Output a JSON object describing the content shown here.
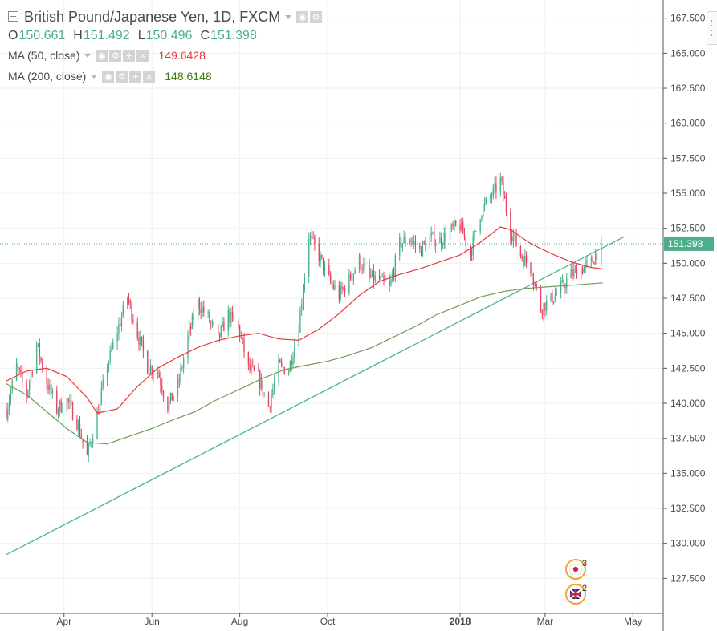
{
  "header": {
    "symbol_title": "British Pound/Japanese Yen, 1D, FXCM",
    "ohlc": [
      {
        "key": "O",
        "value": "150.661"
      },
      {
        "key": "H",
        "value": "151.492"
      },
      {
        "key": "L",
        "value": "150.496"
      },
      {
        "key": "C",
        "value": "151.398"
      }
    ]
  },
  "indicators": [
    {
      "label": "MA (50, close)",
      "value": "149.6428",
      "color": "#e23b3b"
    },
    {
      "label": "MA (200, close)",
      "value": "148.6148",
      "color": "#3d7a12"
    }
  ],
  "colors": {
    "up": "#4caf8a",
    "down": "#e2435e",
    "ma50": "#e23b3b",
    "ma200": "#6d9a55",
    "trendline": "#49b394",
    "grid": "#eef0f2",
    "last_price_bg": "#4caf8a"
  },
  "events": [
    {
      "icon": "jp-flag-icon",
      "count": "3"
    },
    {
      "icon": "gb-flag-icon",
      "count": "2"
    }
  ],
  "chart_data": {
    "type": "candlestick",
    "title": "British Pound/Japanese Yen, 1D, FXCM",
    "y_ticks": [
      "167.500",
      "165.000",
      "162.500",
      "160.000",
      "157.500",
      "155.000",
      "152.500",
      "150.000",
      "147.500",
      "145.000",
      "142.500",
      "140.000",
      "137.500",
      "135.000",
      "132.500",
      "130.000",
      "127.500"
    ],
    "x_ticks": [
      {
        "label": "Apr",
        "date": "2017-04-01",
        "bold": false
      },
      {
        "label": "Jun",
        "date": "2017-06-01",
        "bold": false
      },
      {
        "label": "Aug",
        "date": "2017-08-01",
        "bold": false
      },
      {
        "label": "Oct",
        "date": "2017-10-01",
        "bold": false
      },
      {
        "label": "2018",
        "date": "2018-01-01",
        "bold": true
      },
      {
        "label": "Mar",
        "date": "2018-03-01",
        "bold": false
      },
      {
        "label": "May",
        "date": "2018-05-01",
        "bold": false
      }
    ],
    "ylim": [
      125.0,
      168.8
    ],
    "xlim": [
      "2017-02-20",
      "2018-05-22"
    ],
    "last_price": "151.398",
    "last_price_value": 151.398,
    "grid": true,
    "close_path": [
      [
        "2017-02-20",
        139.5
      ],
      [
        "2017-02-27",
        142.6
      ],
      [
        "2017-03-06",
        140.6
      ],
      [
        "2017-03-13",
        144.2
      ],
      [
        "2017-03-20",
        141.5
      ],
      [
        "2017-03-27",
        139.6
      ],
      [
        "2017-04-03",
        140.2
      ],
      [
        "2017-04-10",
        138.7
      ],
      [
        "2017-04-17",
        136.2
      ],
      [
        "2017-04-24",
        139.2
      ],
      [
        "2017-05-01",
        142.7
      ],
      [
        "2017-05-08",
        145.2
      ],
      [
        "2017-05-15",
        147.6
      ],
      [
        "2017-05-22",
        145.0
      ],
      [
        "2017-05-29",
        142.6
      ],
      [
        "2017-06-05",
        142.3
      ],
      [
        "2017-06-12",
        139.8
      ],
      [
        "2017-06-19",
        141.2
      ],
      [
        "2017-06-26",
        144.7
      ],
      [
        "2017-07-03",
        147.2
      ],
      [
        "2017-07-10",
        146.1
      ],
      [
        "2017-07-17",
        144.6
      ],
      [
        "2017-07-24",
        146.3
      ],
      [
        "2017-07-31",
        145.4
      ],
      [
        "2017-08-07",
        142.5
      ],
      [
        "2017-08-14",
        141.8
      ],
      [
        "2017-08-21",
        139.8
      ],
      [
        "2017-08-28",
        142.6
      ],
      [
        "2017-09-04",
        142.4
      ],
      [
        "2017-09-11",
        145.6
      ],
      [
        "2017-09-18",
        152.0
      ],
      [
        "2017-09-25",
        150.5
      ],
      [
        "2017-10-02",
        148.8
      ],
      [
        "2017-10-09",
        147.7
      ],
      [
        "2017-10-16",
        148.8
      ],
      [
        "2017-10-23",
        150.2
      ],
      [
        "2017-10-30",
        149.0
      ],
      [
        "2017-11-06",
        148.8
      ],
      [
        "2017-11-13",
        148.2
      ],
      [
        "2017-11-20",
        151.4
      ],
      [
        "2017-11-27",
        151.8
      ],
      [
        "2017-12-04",
        150.9
      ],
      [
        "2017-12-11",
        151.8
      ],
      [
        "2017-12-18",
        151.6
      ],
      [
        "2017-12-25",
        152.3
      ],
      [
        "2018-01-01",
        152.7
      ],
      [
        "2018-01-08",
        150.7
      ],
      [
        "2018-01-15",
        153.6
      ],
      [
        "2018-01-22",
        154.7
      ],
      [
        "2018-01-29",
        155.9
      ],
      [
        "2018-02-05",
        152.4
      ],
      [
        "2018-02-12",
        150.6
      ],
      [
        "2018-02-19",
        149.7
      ],
      [
        "2018-02-26",
        146.8
      ],
      [
        "2018-03-05",
        147.4
      ],
      [
        "2018-03-12",
        148.2
      ],
      [
        "2018-03-19",
        149.2
      ],
      [
        "2018-03-26",
        149.6
      ],
      [
        "2018-04-02",
        150.0
      ],
      [
        "2018-04-09",
        151.4
      ]
    ],
    "series": [
      {
        "name": "MA (50, close)",
        "value": 149.6428,
        "values": [
          [
            "2017-02-20",
            141.6
          ],
          [
            "2017-03-06",
            142.3
          ],
          [
            "2017-03-20",
            142.5
          ],
          [
            "2017-04-03",
            141.9
          ],
          [
            "2017-04-17",
            140.4
          ],
          [
            "2017-04-24",
            139.3
          ],
          [
            "2017-05-08",
            139.6
          ],
          [
            "2017-05-22",
            141.2
          ],
          [
            "2017-06-05",
            142.5
          ],
          [
            "2017-06-19",
            143.3
          ],
          [
            "2017-07-03",
            144.0
          ],
          [
            "2017-07-17",
            144.5
          ],
          [
            "2017-07-31",
            144.8
          ],
          [
            "2017-08-14",
            145.0
          ],
          [
            "2017-08-28",
            144.6
          ],
          [
            "2017-09-11",
            144.5
          ],
          [
            "2017-09-25",
            145.3
          ],
          [
            "2017-10-09",
            146.4
          ],
          [
            "2017-10-23",
            147.7
          ],
          [
            "2017-11-06",
            148.7
          ],
          [
            "2017-11-20",
            149.2
          ],
          [
            "2017-12-04",
            149.6
          ],
          [
            "2017-12-18",
            150.1
          ],
          [
            "2018-01-01",
            150.6
          ],
          [
            "2018-01-15",
            151.5
          ],
          [
            "2018-01-29",
            152.6
          ],
          [
            "2018-02-05",
            152.4
          ],
          [
            "2018-02-19",
            151.4
          ],
          [
            "2018-03-05",
            150.7
          ],
          [
            "2018-03-19",
            150.1
          ],
          [
            "2018-04-02",
            149.7
          ],
          [
            "2018-04-10",
            149.6
          ]
        ]
      },
      {
        "name": "MA (200, close)",
        "value": 148.6148,
        "values": [
          [
            "2017-02-20",
            141.4
          ],
          [
            "2017-03-06",
            140.6
          ],
          [
            "2017-03-20",
            139.4
          ],
          [
            "2017-04-03",
            138.2
          ],
          [
            "2017-04-17",
            137.2
          ],
          [
            "2017-05-01",
            137.1
          ],
          [
            "2017-05-15",
            137.6
          ],
          [
            "2017-06-01",
            138.2
          ],
          [
            "2017-06-15",
            138.8
          ],
          [
            "2017-07-01",
            139.4
          ],
          [
            "2017-07-15",
            140.2
          ],
          [
            "2017-08-01",
            141.0
          ],
          [
            "2017-08-15",
            141.7
          ],
          [
            "2017-09-01",
            142.4
          ],
          [
            "2017-09-15",
            142.7
          ],
          [
            "2017-10-01",
            143.0
          ],
          [
            "2017-10-15",
            143.4
          ],
          [
            "2017-11-01",
            144.0
          ],
          [
            "2017-11-15",
            144.7
          ],
          [
            "2017-12-01",
            145.5
          ],
          [
            "2017-12-15",
            146.3
          ],
          [
            "2018-01-01",
            147.0
          ],
          [
            "2018-01-15",
            147.6
          ],
          [
            "2018-02-01",
            148.0
          ],
          [
            "2018-02-15",
            148.2
          ],
          [
            "2018-03-01",
            148.3
          ],
          [
            "2018-03-15",
            148.4
          ],
          [
            "2018-04-10",
            148.6
          ]
        ]
      }
    ],
    "trendline": [
      [
        "2017-02-20",
        129.2
      ],
      [
        "2018-04-25",
        151.9
      ]
    ]
  }
}
